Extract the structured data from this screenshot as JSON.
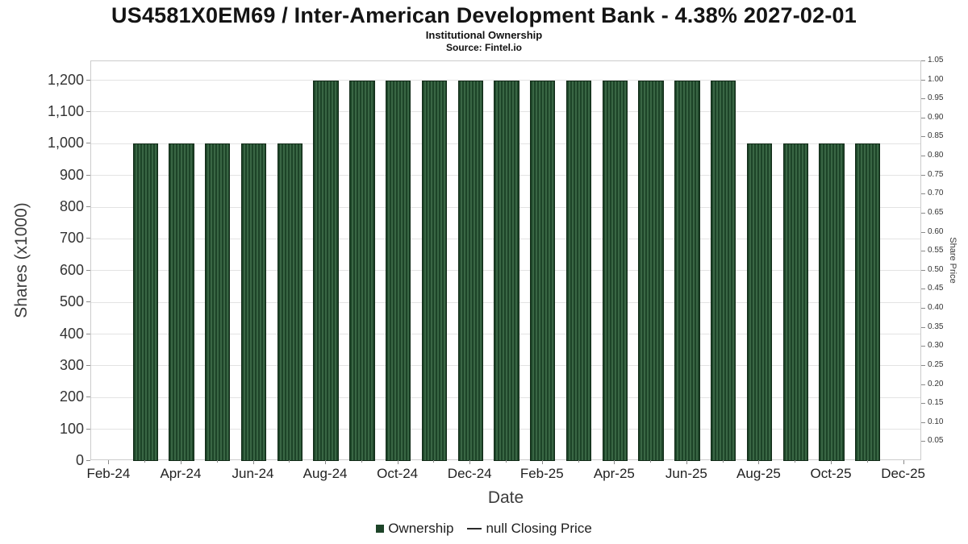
{
  "header": {
    "title": "US4581X0EM69 / Inter-American Development Bank - 4.38% 2027-02-01",
    "subtitle": "Institutional Ownership",
    "source": "Source: Fintel.io"
  },
  "chart_data": {
    "type": "bar",
    "title": "Institutional Ownership",
    "xlabel": "Date",
    "ylabel": "Shares (x1000)",
    "y2label": "Share Price",
    "series_name": "Ownership",
    "categories": [
      "Mar-24",
      "Apr-24",
      "May-24",
      "Jun-24",
      "Jul-24",
      "Aug-24",
      "Sep-24",
      "Oct-24",
      "Nov-24",
      "Dec-24",
      "Jan-25",
      "Feb-25",
      "Mar-25",
      "Apr-25",
      "May-25",
      "Jun-25",
      "Jul-25",
      "Aug-25",
      "Sep-25",
      "Oct-25",
      "Nov-25"
    ],
    "values": [
      1000,
      1000,
      1000,
      1000,
      1000,
      1200,
      1200,
      1200,
      1200,
      1200,
      1200,
      1200,
      1200,
      1200,
      1200,
      1200,
      1200,
      1000,
      1000,
      1000,
      1000
    ],
    "ylim": [
      0,
      1260
    ],
    "yticks": [
      0,
      100,
      200,
      300,
      400,
      500,
      600,
      700,
      800,
      900,
      1000,
      1100,
      1200
    ],
    "ytick_labels": [
      "0",
      "100",
      "200",
      "300",
      "400",
      "500",
      "600",
      "700",
      "800",
      "900",
      "1,000",
      "1,100",
      "1,200"
    ],
    "y2ticks": [
      0.05,
      0.1,
      0.15,
      0.2,
      0.25,
      0.3,
      0.35,
      0.4,
      0.45,
      0.5,
      0.55,
      0.6,
      0.65,
      0.7,
      0.75,
      0.8,
      0.85,
      0.9,
      0.95,
      1.0,
      1.05
    ],
    "y2_to_y_scale": 1200,
    "x_ticks": [
      "Feb-24",
      "Apr-24",
      "Jun-24",
      "Aug-24",
      "Oct-24",
      "Dec-24",
      "Feb-25",
      "Apr-25",
      "Jun-25",
      "Aug-25",
      "Oct-25",
      "Dec-25"
    ],
    "x_slots": 23,
    "x_tick_step": 2,
    "bar_start_slot": 1,
    "grid": true,
    "legend_position": "bottom",
    "colors": {
      "bar_fill": "#1d4428",
      "bar_stripe": "#396644",
      "bar_border": "#122b18",
      "grid": "#e3e3e3",
      "axis_border": "#cccccc",
      "text": "#333333"
    }
  },
  "legend": {
    "ownership": "Ownership",
    "price": "null Closing Price"
  }
}
